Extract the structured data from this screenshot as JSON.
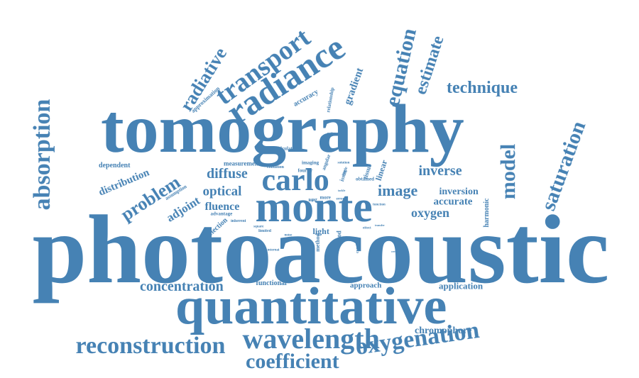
{
  "colors": {
    "word": "#4682b4",
    "background": "#ffffff"
  },
  "words": [
    {
      "text": "photoacoustic",
      "orientation": "horizontal"
    },
    {
      "text": "tomography",
      "orientation": "horizontal"
    },
    {
      "text": "quantitative",
      "orientation": "horizontal"
    },
    {
      "text": "monte",
      "orientation": "horizontal"
    },
    {
      "text": "radiance",
      "orientation": "tilted"
    },
    {
      "text": "carlo",
      "orientation": "horizontal"
    },
    {
      "text": "wavelength",
      "orientation": "horizontal"
    },
    {
      "text": "transport",
      "orientation": "tilted"
    },
    {
      "text": "oxygenation",
      "orientation": "tilted"
    },
    {
      "text": "reconstruction",
      "orientation": "horizontal"
    },
    {
      "text": "coefficient",
      "orientation": "horizontal"
    },
    {
      "text": "absorption",
      "orientation": "vertical"
    },
    {
      "text": "equation",
      "orientation": "vertical"
    },
    {
      "text": "saturation",
      "orientation": "tilted"
    },
    {
      "text": "model",
      "orientation": "vertical"
    },
    {
      "text": "radiative",
      "orientation": "tilted"
    },
    {
      "text": "estimate",
      "orientation": "tilted"
    },
    {
      "text": "technique",
      "orientation": "horizontal"
    },
    {
      "text": "problem",
      "orientation": "tilted"
    },
    {
      "text": "concentration",
      "orientation": "horizontal"
    },
    {
      "text": "image",
      "orientation": "horizontal"
    },
    {
      "text": "inverse",
      "orientation": "horizontal"
    },
    {
      "text": "diffuse",
      "orientation": "horizontal"
    },
    {
      "text": "optical",
      "orientation": "horizontal"
    },
    {
      "text": "oxygen",
      "orientation": "horizontal"
    },
    {
      "text": "fluence",
      "orientation": "horizontal"
    },
    {
      "text": "distribution",
      "orientation": "tilted"
    },
    {
      "text": "adjoint",
      "orientation": "tilted"
    },
    {
      "text": "gradient",
      "orientation": "vertical"
    },
    {
      "text": "accurate",
      "orientation": "horizontal"
    },
    {
      "text": "inversion",
      "orientation": "horizontal"
    },
    {
      "text": "harmonic",
      "orientation": "vertical"
    },
    {
      "text": "chromophore",
      "orientation": "horizontal"
    },
    {
      "text": "application",
      "orientation": "horizontal"
    },
    {
      "text": "approach",
      "orientation": "horizontal"
    },
    {
      "text": "functional",
      "orientation": "horizontal"
    },
    {
      "text": "light",
      "orientation": "horizontal"
    },
    {
      "text": "accuracy",
      "orientation": "tilted"
    },
    {
      "text": "dependent",
      "orientation": "horizontal"
    },
    {
      "text": "linear",
      "orientation": "vertical"
    },
    {
      "text": "selection",
      "orientation": "tilted"
    },
    {
      "text": "measurement",
      "orientation": "horizontal"
    },
    {
      "text": "calculation",
      "orientation": "horizontal"
    },
    {
      "text": "approximation",
      "orientation": "tilted"
    },
    {
      "text": "relationship",
      "orientation": "vertical"
    },
    {
      "text": "estimation",
      "orientation": "horizontal"
    },
    {
      "text": "assumption",
      "orientation": "tilted"
    },
    {
      "text": "advantage",
      "orientation": "horizontal"
    },
    {
      "text": "inherent",
      "orientation": "horizontal"
    },
    {
      "text": "obtained",
      "orientation": "horizontal"
    },
    {
      "text": "condition",
      "orientation": "horizontal"
    },
    {
      "text": "imaging",
      "orientation": "horizontal"
    },
    {
      "text": "fourier",
      "orientation": "horizontal"
    },
    {
      "text": "angular",
      "orientation": "vertical"
    },
    {
      "text": "solution",
      "orientation": "horizontal"
    },
    {
      "text": "tissue",
      "orientation": "vertical"
    },
    {
      "text": "function",
      "orientation": "horizontal"
    },
    {
      "text": "blood",
      "orientation": "vertical"
    },
    {
      "text": "method",
      "orientation": "vertical"
    },
    {
      "text": "compute",
      "orientation": "vertical"
    },
    {
      "text": "more",
      "orientation": "horizontal"
    },
    {
      "text": "error",
      "orientation": "horizontal"
    },
    {
      "text": "noise",
      "orientation": "horizontal"
    },
    {
      "text": "internal",
      "orientation": "horizontal"
    },
    {
      "text": "limited",
      "orientation": "horizontal"
    },
    {
      "text": "square",
      "orientation": "horizontal"
    },
    {
      "text": "paper",
      "orientation": "horizontal"
    },
    {
      "text": "depth",
      "orientation": "horizontal"
    },
    {
      "text": "effect",
      "orientation": "horizontal"
    },
    {
      "text": "transfer",
      "orientation": "horizontal"
    },
    {
      "text": "certain",
      "orientation": "horizontal"
    },
    {
      "text": "angle",
      "orientation": "vertical"
    },
    {
      "text": "tackle",
      "orientation": "horizontal"
    },
    {
      "text": "issue",
      "orientation": "vertical"
    }
  ]
}
